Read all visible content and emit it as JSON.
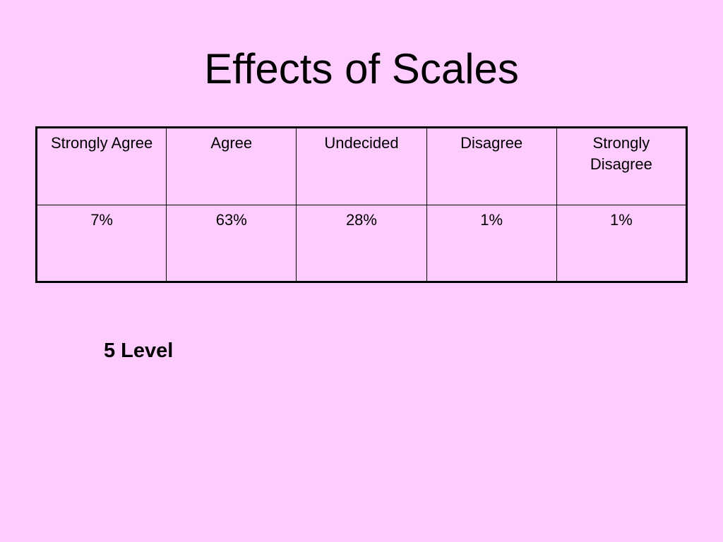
{
  "slide": {
    "title": "Effects of Scales",
    "level_label": "5 Level"
  },
  "table": {
    "headers": [
      "Strongly Agree",
      "Agree",
      "Undecided",
      "Disagree",
      "Strongly Disagree"
    ],
    "values": [
      "7%",
      "63%",
      "28%",
      "1%",
      "1%"
    ]
  },
  "colors": {
    "background": "#ffccff",
    "text": "#000000",
    "border": "#000000"
  }
}
